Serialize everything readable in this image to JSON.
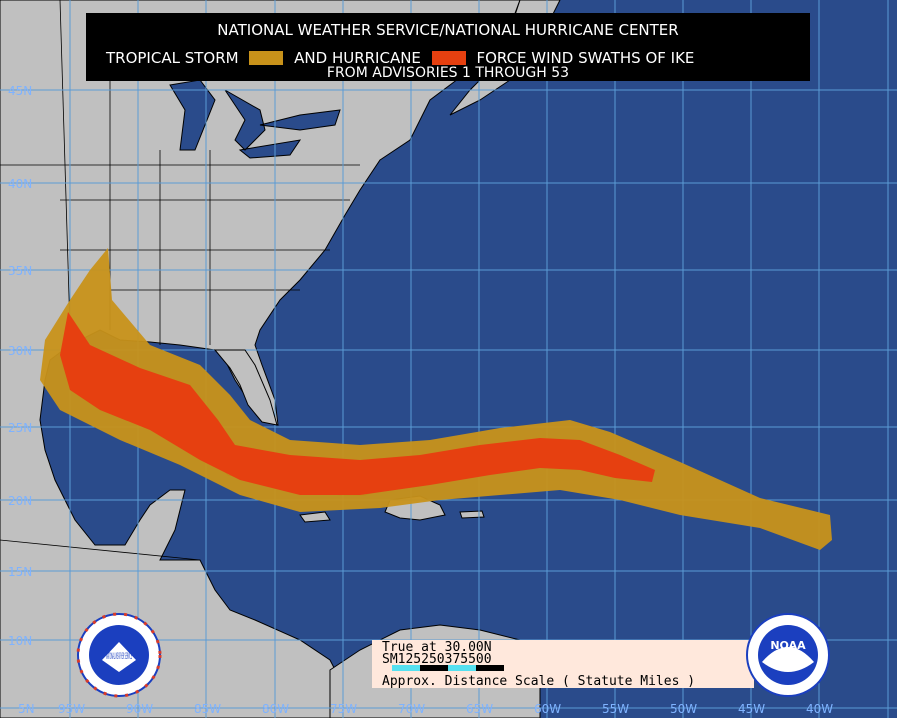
{
  "title": {
    "line1": "NATIONAL WEATHER SERVICE/NATIONAL HURRICANE CENTER",
    "legend_ts": "TROPICAL STORM",
    "legend_and": "AND HURRICANE",
    "legend_force": "FORCE WIND SWATHS OF IKE",
    "line3": "FROM ADVISORIES 1 THROUGH 53"
  },
  "colors": {
    "ocean": "#2a4b8b",
    "land": "#c0c0c0",
    "tropical_storm": "#c8921a",
    "hurricane": "#e64010",
    "grid": "#5b9bd5"
  },
  "scale": {
    "true_at": "True at 30.00N",
    "sm": "SM",
    "ticks": [
      "125",
      "250",
      "375",
      "500"
    ],
    "label": "Approx. Distance Scale ( Statute Miles )"
  },
  "lat_labels": [
    "45N",
    "40N",
    "35N",
    "30N",
    "25N",
    "20N",
    "15N",
    "10N",
    "5N"
  ],
  "lon_labels": [
    "95W",
    "90W",
    "85W",
    "80W",
    "75W",
    "70W",
    "65W",
    "60W",
    "55W",
    "50W",
    "45W",
    "40W"
  ],
  "logos": {
    "nws": "NATIONAL WEATHER SERVICE",
    "noaa": "NOAA"
  }
}
